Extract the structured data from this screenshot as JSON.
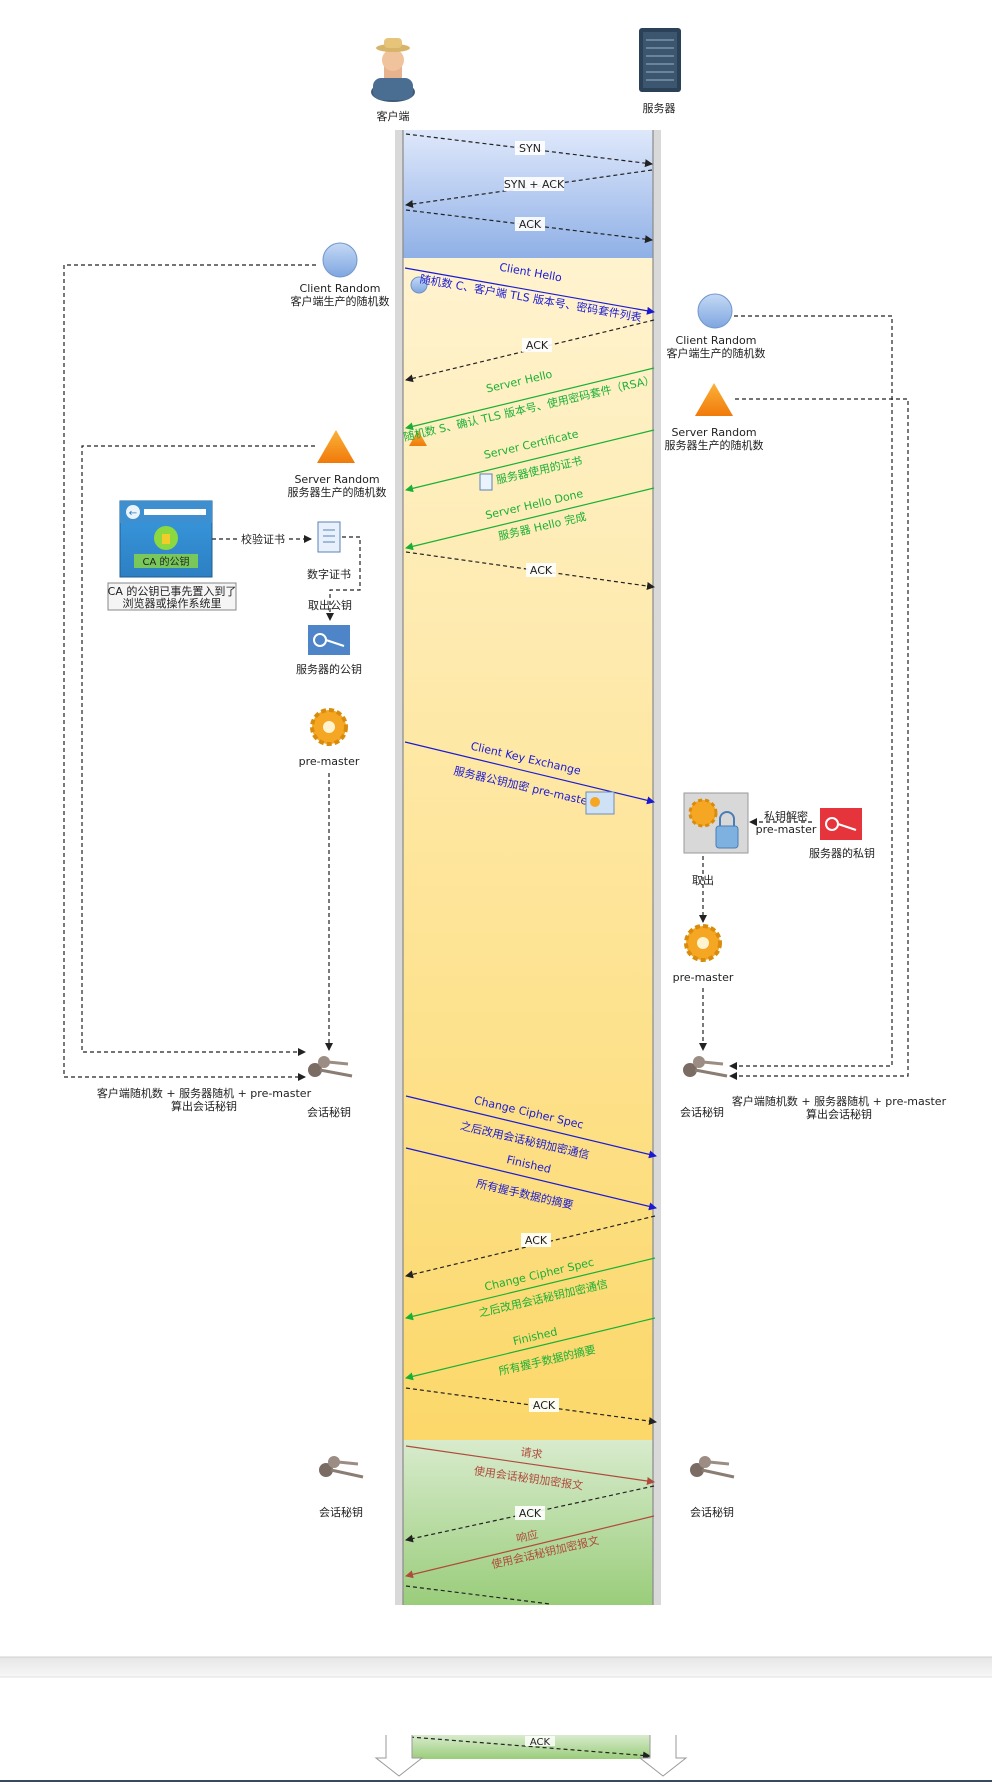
{
  "actors": {
    "client": "客户端",
    "server": "服务器"
  },
  "tcp": {
    "syn": "SYN",
    "synack": "SYN + ACK",
    "ack": "ACK"
  },
  "client_hello": {
    "title": "Client Hello",
    "desc": "随机数 C、客户端 TLS 版本号、密码套件列表"
  },
  "server_hello": {
    "title": "Server Hello",
    "desc": "随机数 S、确认 TLS 版本号、使用密码套件（RSA）"
  },
  "server_certificate": {
    "title": "Server Certificate",
    "desc": "服务器使用的证书"
  },
  "server_hello_done": {
    "title": "Server Hello Done",
    "desc": "服务器 Hello 完成"
  },
  "client_key_exchange": {
    "title": "Client Key Exchange",
    "desc": "服务器公钥加密 pre-master"
  },
  "client_ccs": {
    "title": "Change Cipher Spec",
    "desc": "之后改用会话秘钥加密通信"
  },
  "client_finished": {
    "title": "Finished",
    "desc": "所有握手数据的摘要"
  },
  "server_ccs": {
    "title": "Change Cipher Spec",
    "desc": "之后改用会话秘钥加密通信"
  },
  "server_finished": {
    "title": "Finished",
    "desc": "所有握手数据的摘要"
  },
  "request": {
    "title": "请求",
    "desc": "使用会话秘钥加密报文"
  },
  "response": {
    "title": "响应",
    "desc": "使用会话秘钥加密报文"
  },
  "left": {
    "client_random_title": "Client Random",
    "client_random_desc": "客户端生产的随机数",
    "server_random_title": "Server Random",
    "server_random_desc": "服务器生产的随机数",
    "ca_box_label": "CA 的公钥",
    "ca_note_line1": "CA 的公钥已事先置入到了",
    "ca_note_line2": "浏览器或操作系统里",
    "verify_cert": "校验证书",
    "digital_cert": "数字证书",
    "extract_pubkey": "取出公钥",
    "server_pubkey": "服务器的公钥",
    "premaster": "pre-master",
    "session_key": "会话秘钥",
    "formula_line1": "客户端随机数 + 服务器随机 +  pre-master",
    "formula_line2": "算出会话秘钥",
    "session_key_app": "会话秘钥"
  },
  "right": {
    "client_random_title": "Client Random",
    "client_random_desc": "客户端生产的随机数",
    "server_random_title": "Server Random",
    "server_random_desc": "服务器生产的随机数",
    "decrypt_line1": "私钥解密",
    "decrypt_line2": "pre-master",
    "server_privkey": "服务器的私钥",
    "extract": "取出",
    "premaster": "pre-master",
    "session_key": "会话秘钥",
    "formula_line1": "客户端随机数 + 服务器随机 +  pre-master",
    "formula_line2": "算出会话秘钥",
    "session_key_app": "会话秘钥"
  },
  "colors": {
    "tcp_phase": "#a9c4ef",
    "tls_phase": "#fde9a8",
    "app_phase": "#b5d8a2",
    "client_msg": "#1a1ad6",
    "server_msg": "#19b035",
    "app_msg": "#b04a3c"
  }
}
